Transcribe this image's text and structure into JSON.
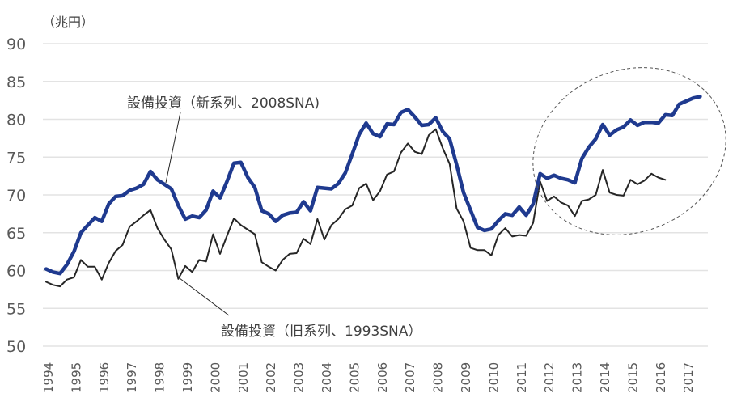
{
  "chart_data": {
    "type": "line",
    "title": "",
    "unit_label": "（兆円）",
    "xlabel": "",
    "ylabel": "",
    "ylim": [
      50,
      90
    ],
    "yticks": [
      50,
      55,
      60,
      65,
      70,
      75,
      80,
      85,
      90
    ],
    "grid": true,
    "frequency": "quarterly",
    "start": "1994Q1",
    "xtick_labels": [
      "1994",
      "1995",
      "1996",
      "1997",
      "1998",
      "1999",
      "2000",
      "2001",
      "2002",
      "2003",
      "2004",
      "2005",
      "2006",
      "2007",
      "2008",
      "2009",
      "2010",
      "2011",
      "2012",
      "2013",
      "2014",
      "2015",
      "2016",
      "2017"
    ],
    "series": [
      {
        "name": "設備投資（新系列、2008SNA)",
        "color": "#1f3a8f",
        "values": [
          60.2,
          59.8,
          59.6,
          60.8,
          62.5,
          65.0,
          66.0,
          67.0,
          66.5,
          68.8,
          69.8,
          69.9,
          70.6,
          70.9,
          71.4,
          73.1,
          72.0,
          71.4,
          70.8,
          68.6,
          66.8,
          67.2,
          67.0,
          68.0,
          70.5,
          69.6,
          71.8,
          74.2,
          74.3,
          72.3,
          71.0,
          67.9,
          67.5,
          66.5,
          67.3,
          67.6,
          67.7,
          69.1,
          67.9,
          71.0,
          70.9,
          70.8,
          71.5,
          72.9,
          75.4,
          78.0,
          79.5,
          78.1,
          77.7,
          79.4,
          79.3,
          80.9,
          81.3,
          80.3,
          79.2,
          79.3,
          80.2,
          78.4,
          77.4,
          74.0,
          70.3,
          68.0,
          65.7,
          65.3,
          65.5,
          66.6,
          67.5,
          67.3,
          68.4,
          67.3,
          68.8,
          72.8,
          72.2,
          72.6,
          72.2,
          72.0,
          71.6,
          74.8,
          76.3,
          77.4,
          79.3,
          77.9,
          78.6,
          79.0,
          79.9,
          79.2,
          79.6,
          79.6,
          79.5,
          80.6,
          80.5,
          82.0,
          82.4,
          82.8,
          83.0
        ]
      },
      {
        "name": "設備投資（旧系列、1993SNA）",
        "color": "#262626",
        "values": [
          58.5,
          58.1,
          57.9,
          58.8,
          59.1,
          61.4,
          60.5,
          60.5,
          58.8,
          61.0,
          62.6,
          63.4,
          65.8,
          66.5,
          67.3,
          68.0,
          65.6,
          64.1,
          62.8,
          58.9,
          60.6,
          59.8,
          61.4,
          61.2,
          64.8,
          62.2,
          64.6,
          66.9,
          66.0,
          65.4,
          64.8,
          61.1,
          60.5,
          60.0,
          61.4,
          62.2,
          62.3,
          64.2,
          63.5,
          66.8,
          64.1,
          66.0,
          66.8,
          68.1,
          68.6,
          70.9,
          71.5,
          69.3,
          70.5,
          72.7,
          73.1,
          75.6,
          76.8,
          75.7,
          75.4,
          77.9,
          78.7,
          76.2,
          74.1,
          68.2,
          66.5,
          63.0,
          62.7,
          62.7,
          62.0,
          64.7,
          65.6,
          64.5,
          64.7,
          64.6,
          66.3,
          71.8,
          69.2,
          69.8,
          69.0,
          68.6,
          67.2,
          69.2,
          69.4,
          70.0,
          73.3,
          70.3,
          70.0,
          69.9,
          72.0,
          71.4,
          71.9,
          72.8,
          72.3,
          72.0
        ]
      }
    ],
    "annotations": {
      "new_series_label": "設備投資（新系列、2008SNA)",
      "old_series_label": "設備投資（旧系列、1993SNA）",
      "highlight": "dashed-ellipse around 2012-2017"
    }
  }
}
